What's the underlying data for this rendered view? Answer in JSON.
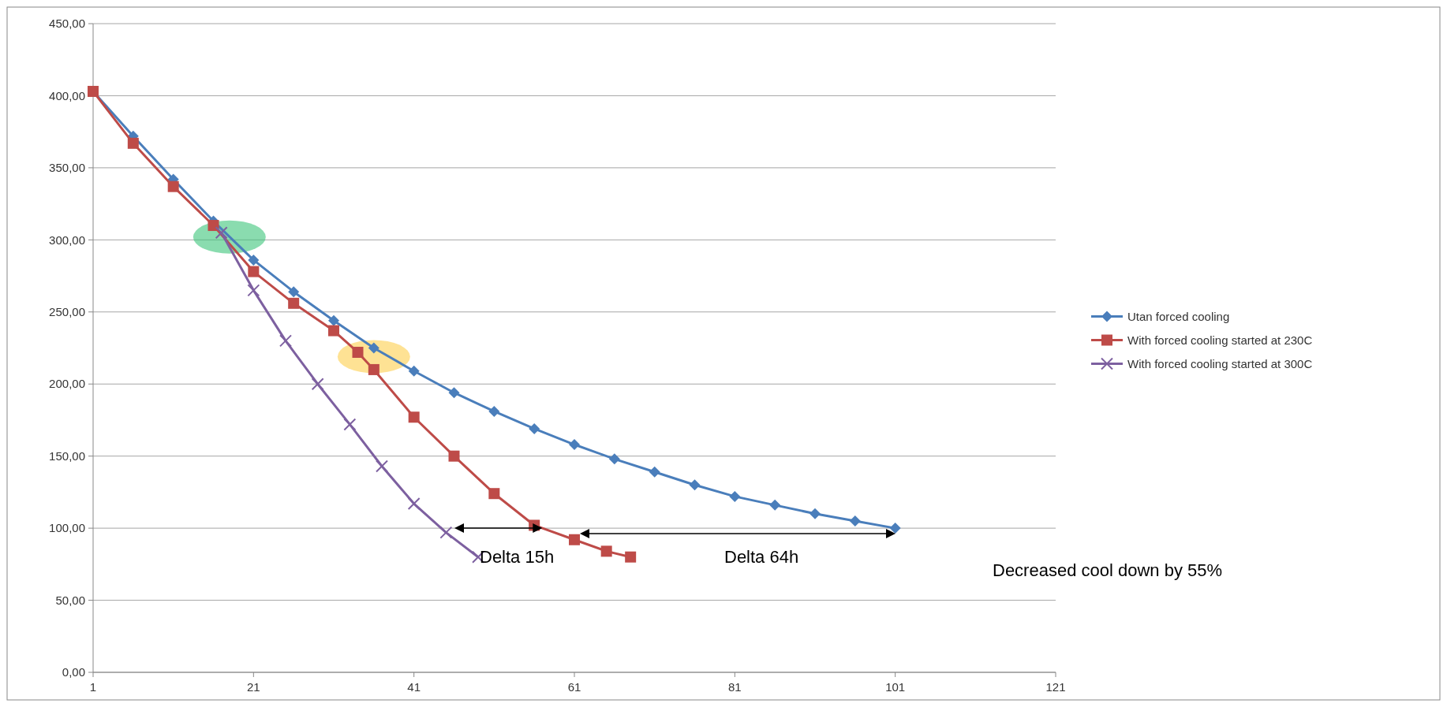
{
  "chart_data": {
    "type": "line",
    "xlim": [
      1,
      121
    ],
    "xticks": [
      1,
      21,
      41,
      61,
      81,
      101,
      121
    ],
    "ylim": [
      0,
      450
    ],
    "yticks": [
      {
        "value": 0,
        "label": "0,00"
      },
      {
        "value": 50,
        "label": "50,00"
      },
      {
        "value": 100,
        "label": "100,00"
      },
      {
        "value": 150,
        "label": "150,00"
      },
      {
        "value": 200,
        "label": "200,00"
      },
      {
        "value": 250,
        "label": "250,00"
      },
      {
        "value": 300,
        "label": "300,00"
      },
      {
        "value": 350,
        "label": "350,00"
      },
      {
        "value": 400,
        "label": "400,00"
      },
      {
        "value": 450,
        "label": "450,00"
      }
    ],
    "grid": "y",
    "legend": "right",
    "series": [
      {
        "name": "Utan forced cooling",
        "color": "#4a7ebb",
        "marker": "diamond",
        "x": [
          1,
          6,
          11,
          16,
          21,
          26,
          31,
          36,
          41,
          46,
          51,
          56,
          61,
          66,
          71,
          76,
          81,
          86,
          91,
          96,
          101
        ],
        "values": [
          403,
          372,
          342,
          313,
          286,
          264,
          244,
          225,
          209,
          194,
          181,
          169,
          158,
          148,
          139,
          130,
          122,
          116,
          110,
          105,
          100
        ]
      },
      {
        "name": "With forced cooling started at 230C",
        "color": "#be4b48",
        "marker": "square",
        "x": [
          1,
          6,
          11,
          16,
          21,
          26,
          31,
          34,
          36,
          41,
          46,
          51,
          56,
          61,
          65,
          68
        ],
        "values": [
          403,
          367,
          337,
          310,
          278,
          256,
          237,
          222,
          210,
          177,
          150,
          124,
          102,
          92,
          84,
          80
        ]
      },
      {
        "name": "With forced cooling started at 300C",
        "color": "#7d60a0",
        "marker": "cross",
        "x": [
          17,
          21,
          25,
          29,
          33,
          37,
          41,
          45,
          49
        ],
        "values": [
          305,
          265,
          230,
          200,
          172,
          143,
          117,
          97,
          80
        ]
      }
    ],
    "annotations": [
      {
        "text": "Delta 15h",
        "x": 57,
        "y": 100
      },
      "Delta 64h",
      "Decreased cool down by 55%"
    ]
  }
}
